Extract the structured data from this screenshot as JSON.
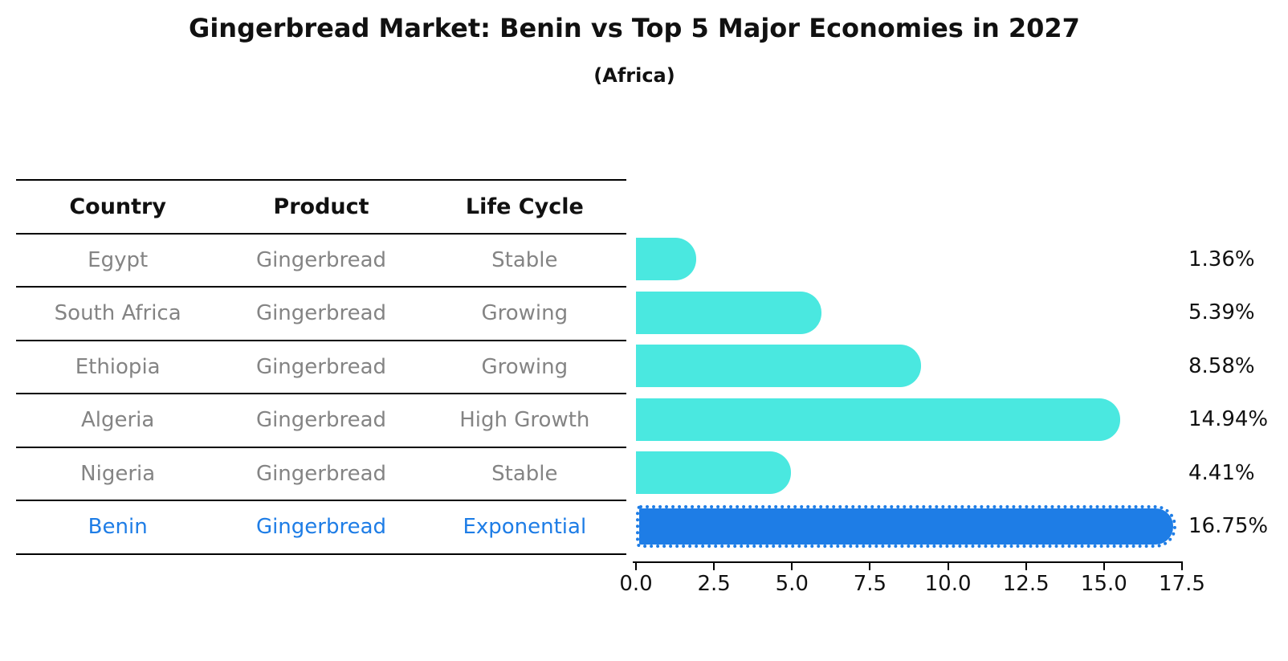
{
  "title": "Gingerbread Market: Benin vs Top 5 Major Economies in 2027",
  "subtitle": "(Africa)",
  "table": {
    "headers": [
      "Country",
      "Product",
      "Life Cycle"
    ],
    "rows": [
      {
        "country": "Egypt",
        "product": "Gingerbread",
        "life_cycle": "Stable",
        "highlight": false
      },
      {
        "country": "South Africa",
        "product": "Gingerbread",
        "life_cycle": "Growing",
        "highlight": false
      },
      {
        "country": "Ethiopia",
        "product": "Gingerbread",
        "life_cycle": "Growing",
        "highlight": false
      },
      {
        "country": "Algeria",
        "product": "Gingerbread",
        "life_cycle": "High Growth",
        "highlight": false
      },
      {
        "country": "Nigeria",
        "product": "Gingerbread",
        "life_cycle": "Stable",
        "highlight": false
      },
      {
        "country": "Benin",
        "product": "Gingerbread",
        "life_cycle": "Exponential",
        "highlight": true
      }
    ]
  },
  "chart_data": {
    "type": "bar",
    "orientation": "horizontal",
    "title": "Gingerbread Market: Benin vs Top 5 Major Economies in 2027",
    "subtitle": "(Africa)",
    "categories": [
      "Egypt",
      "South Africa",
      "Ethiopia",
      "Algeria",
      "Nigeria",
      "Benin"
    ],
    "values": [
      1.36,
      5.39,
      8.58,
      14.94,
      4.41,
      16.75
    ],
    "value_labels": [
      "1.36%",
      "5.39%",
      "8.58%",
      "14.94%",
      "4.41%",
      "16.75%"
    ],
    "xlim": [
      0,
      17.5
    ],
    "x_ticks": [
      "0.0",
      "2.5",
      "5.0",
      "7.5",
      "10.0",
      "12.5",
      "15.0",
      "17.5"
    ],
    "highlight_index": 5,
    "bar_color": "#4AE8E0",
    "highlight_color": "#1E7DE6",
    "grid": false,
    "legend": false,
    "xlabel": "",
    "ylabel": ""
  },
  "colors": {
    "accent_blue": "#1E7DE6",
    "bar_turquoise": "#4AE8E0",
    "table_text_gray": "#848484",
    "text_black": "#111111",
    "background": "#FFFFFF"
  }
}
